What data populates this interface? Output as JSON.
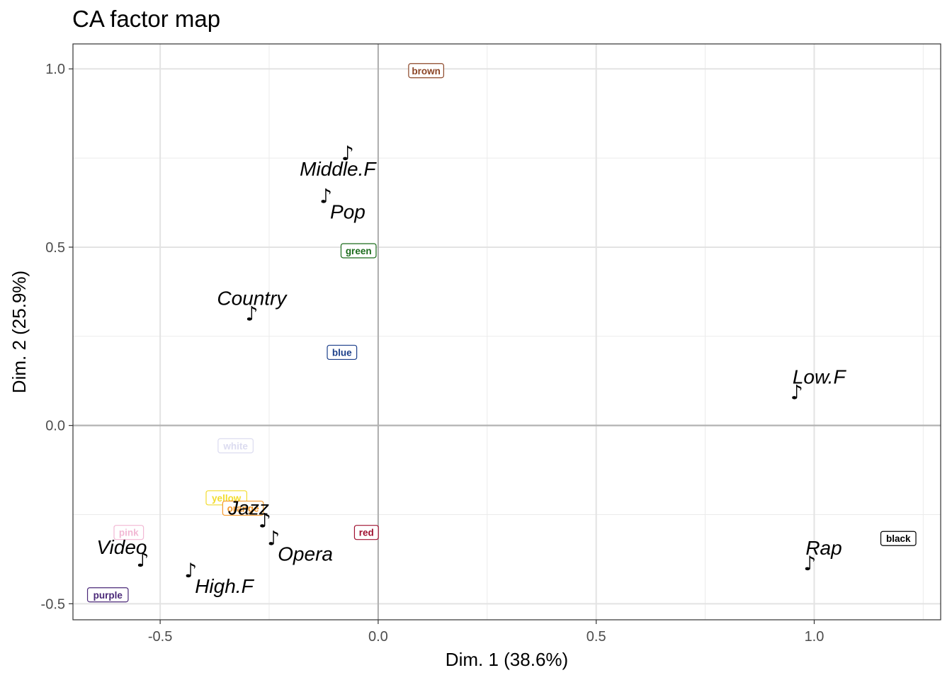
{
  "chart_data": {
    "type": "scatter",
    "title": "CA factor map",
    "xlabel": "Dim. 1 (38.6%)",
    "ylabel": "Dim. 2 (25.9%)",
    "xlim": [
      -0.7,
      1.29
    ],
    "ylim": [
      -0.545,
      1.07
    ],
    "xticks": [
      -0.5,
      0.0,
      0.5,
      1.0
    ],
    "xtick_labels": [
      "-0.5",
      "0.0",
      "0.5",
      "1.0"
    ],
    "yticks": [
      -0.5,
      0.0,
      0.5,
      1.0
    ],
    "ytick_labels": [
      "-0.5",
      "0.0",
      "0.5",
      "1.0"
    ],
    "grid": true,
    "row_marker": "♪",
    "row_points": [
      {
        "label": "Middle.F",
        "x": -0.07,
        "y": 0.76,
        "label_pos": "below-left"
      },
      {
        "label": "Pop",
        "x": -0.12,
        "y": 0.64,
        "label_pos": "below-right"
      },
      {
        "label": "Country",
        "x": -0.29,
        "y": 0.31,
        "label_pos": "above"
      },
      {
        "label": "Low.F",
        "x": 0.96,
        "y": 0.09,
        "label_pos": "above-right"
      },
      {
        "label": "Jazz",
        "x": -0.26,
        "y": -0.27,
        "label_pos": "above-left"
      },
      {
        "label": "Opera",
        "x": -0.24,
        "y": -0.32,
        "label_pos": "below-right"
      },
      {
        "label": "Video",
        "x": -0.54,
        "y": -0.38,
        "label_pos": "above-left"
      },
      {
        "label": "High.F",
        "x": -0.43,
        "y": -0.41,
        "label_pos": "below-right"
      },
      {
        "label": "Rap",
        "x": 0.99,
        "y": -0.39,
        "label_pos": "above-right"
      }
    ],
    "column_points": [
      {
        "label": "brown",
        "x": 0.11,
        "y": 0.995,
        "color": "#8b4526"
      },
      {
        "label": "green",
        "x": -0.045,
        "y": 0.49,
        "color": "#1a6b1a"
      },
      {
        "label": "blue",
        "x": -0.083,
        "y": 0.205,
        "color": "#1c3f8a"
      },
      {
        "label": "white",
        "x": -0.327,
        "y": -0.057,
        "color": "#dcdcf0"
      },
      {
        "label": "yellow",
        "x": -0.348,
        "y": -0.203,
        "color": "#f2dc2e"
      },
      {
        "label": "orange",
        "x": -0.31,
        "y": -0.232,
        "color": "#f59a2e"
      },
      {
        "label": "red",
        "x": -0.027,
        "y": -0.3,
        "color": "#a01030"
      },
      {
        "label": "pink",
        "x": -0.572,
        "y": -0.3,
        "color": "#f2b8d4"
      },
      {
        "label": "purple",
        "x": -0.62,
        "y": -0.475,
        "color": "#4a2878"
      },
      {
        "label": "black",
        "x": 1.193,
        "y": -0.317,
        "color": "#000000"
      }
    ]
  }
}
